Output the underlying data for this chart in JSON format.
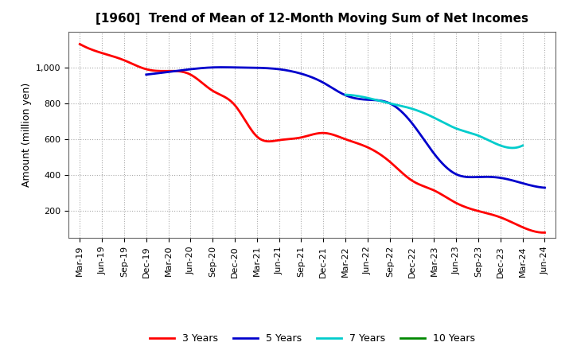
{
  "title": "[1960]  Trend of Mean of 12-Month Moving Sum of Net Incomes",
  "ylabel": "Amount (million yen)",
  "background_color": "#ffffff",
  "grid_color": "#aaaaaa",
  "x_labels": [
    "Mar-19",
    "Jun-19",
    "Sep-19",
    "Dec-19",
    "Mar-20",
    "Jun-20",
    "Sep-20",
    "Dec-20",
    "Mar-21",
    "Jun-21",
    "Sep-21",
    "Dec-21",
    "Mar-22",
    "Jun-22",
    "Sep-22",
    "Dec-22",
    "Mar-23",
    "Jun-23",
    "Sep-23",
    "Dec-23",
    "Mar-24",
    "Jun-24"
  ],
  "series": {
    "3 Years": {
      "color": "#ff0000",
      "data_x": [
        0,
        1,
        2,
        3,
        4,
        5,
        6,
        7,
        8,
        9,
        10,
        11,
        12,
        13,
        14,
        15,
        16,
        17,
        18,
        19,
        20,
        21
      ],
      "data_y": [
        1130,
        1080,
        1040,
        990,
        980,
        960,
        870,
        790,
        615,
        595,
        610,
        635,
        600,
        555,
        475,
        370,
        315,
        245,
        200,
        165,
        110,
        80
      ]
    },
    "5 Years": {
      "color": "#0000cc",
      "data_x": [
        3,
        4,
        5,
        6,
        7,
        8,
        9,
        10,
        11,
        12,
        13,
        14,
        15,
        16,
        17,
        18,
        19,
        20,
        21
      ],
      "data_y": [
        960,
        975,
        990,
        1000,
        1000,
        998,
        990,
        965,
        915,
        845,
        820,
        800,
        690,
        520,
        405,
        390,
        385,
        355,
        330
      ]
    },
    "7 Years": {
      "color": "#00cccc",
      "data_x": [
        12,
        13,
        14,
        15,
        16,
        17,
        18,
        19,
        20
      ],
      "data_y": [
        848,
        830,
        800,
        770,
        720,
        660,
        620,
        565,
        565
      ]
    },
    "10 Years": {
      "color": "#008800",
      "data_x": [],
      "data_y": []
    }
  },
  "ylim": [
    50,
    1200
  ],
  "yticks": [
    200,
    400,
    600,
    800,
    1000
  ],
  "ytick_labels": [
    "200",
    "400",
    "600",
    "800",
    "1,000"
  ],
  "title_fontsize": 11,
  "axis_fontsize": 9,
  "tick_fontsize": 8
}
